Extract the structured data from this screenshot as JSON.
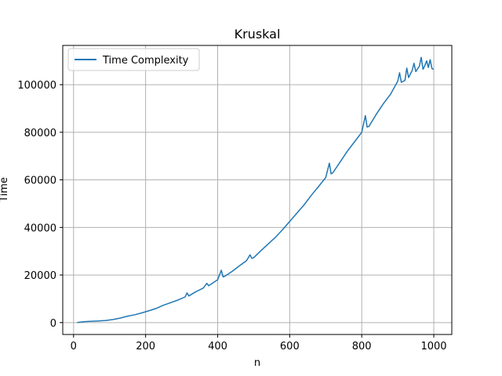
{
  "chart_data": {
    "type": "line",
    "title": "Kruskal",
    "xlabel": "n",
    "ylabel": "Time",
    "xlim": [
      -30,
      1050
    ],
    "ylim": [
      -5000,
      116500
    ],
    "xticks": [
      0,
      200,
      400,
      600,
      800,
      1000
    ],
    "yticks": [
      0,
      20000,
      40000,
      60000,
      80000,
      100000
    ],
    "grid": true,
    "legend_position": "top-left",
    "series": [
      {
        "name": "Time Complexity",
        "color": "#1f77b4",
        "x": [
          10,
          30,
          50,
          70,
          90,
          110,
          130,
          150,
          170,
          190,
          210,
          230,
          250,
          270,
          290,
          310,
          315,
          320,
          340,
          360,
          370,
          375,
          380,
          400,
          410,
          415,
          420,
          440,
          460,
          480,
          490,
          495,
          500,
          520,
          540,
          560,
          580,
          600,
          620,
          640,
          660,
          680,
          700,
          710,
          715,
          720,
          740,
          760,
          780,
          800,
          810,
          815,
          820,
          840,
          860,
          880,
          900,
          905,
          910,
          920,
          925,
          930,
          940,
          945,
          950,
          960,
          965,
          970,
          975,
          980,
          985,
          990,
          995,
          1000
        ],
        "y": [
          50,
          400,
          550,
          700,
          900,
          1300,
          1900,
          2700,
          3300,
          4100,
          5000,
          6000,
          7300,
          8400,
          9500,
          10800,
          12500,
          11200,
          13000,
          14500,
          16500,
          15500,
          16000,
          18000,
          22000,
          19200,
          19500,
          21500,
          23800,
          26000,
          28500,
          27000,
          27300,
          30200,
          33000,
          35800,
          39000,
          42500,
          46000,
          49500,
          53500,
          57200,
          61000,
          67000,
          62500,
          63000,
          67500,
          72000,
          76000,
          80000,
          87000,
          82200,
          82500,
          87500,
          92000,
          96000,
          101500,
          105000,
          101000,
          101800,
          107000,
          103000,
          106000,
          109000,
          105500,
          107800,
          111500,
          106500,
          108000,
          110000,
          107200,
          110500,
          106800,
          106500
        ]
      }
    ]
  }
}
